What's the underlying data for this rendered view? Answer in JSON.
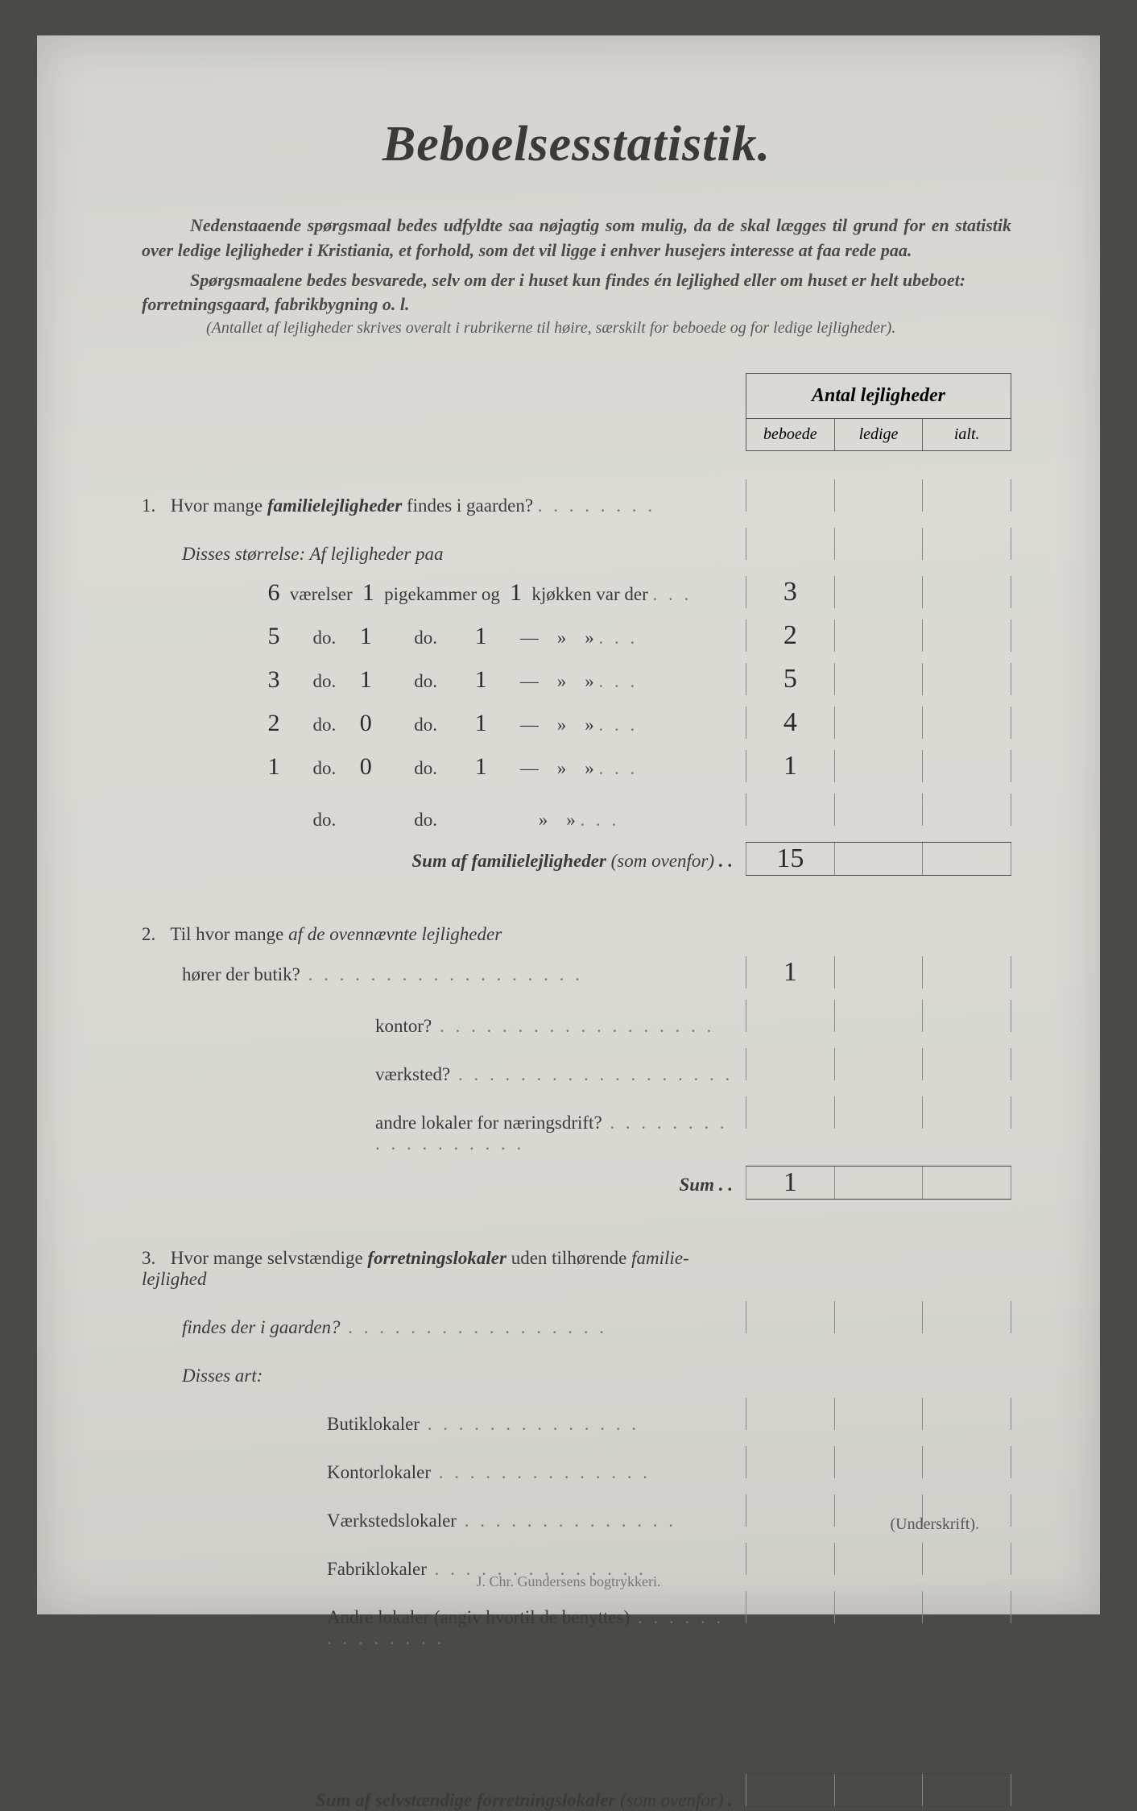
{
  "title": "Beboelsesstatistik.",
  "intro1": "Nedenstaaende spørgsmaal bedes udfyldte saa nøjagtig som mulig, da de skal lægges til grund for en statistik over ledige lejligheder i Kristiania, et forhold, som det vil ligge i enhver husejers interesse at faa rede paa.",
  "intro2": "Spørgsmaalene bedes besvarede, selv om der i huset kun findes én lejlighed eller om huset er helt ubeboet: forretningsgaard, fabrikbygning o. l.",
  "intro3": "(Antallet af lejligheder skrives overalt i rubrikerne til høire, særskilt for beboede og for ledige lejligheder).",
  "hdr_main": "Antal lejligheder",
  "hdr_c1": "beboede",
  "hdr_c2": "ledige",
  "hdr_c3": "ialt.",
  "q1": "Hvor mange ",
  "q1b": "familielejligheder",
  "q1c": " findes i gaarden?",
  "q1sub": "Disses størrelse:  Af lejligheder paa",
  "rows": [
    {
      "v": "6",
      "p": "1",
      "k": "1",
      "b": "3",
      "l": "",
      "i": ""
    },
    {
      "v": "5",
      "p": "1",
      "k": "1",
      "b": "2",
      "l": "",
      "i": ""
    },
    {
      "v": "3",
      "p": "1",
      "k": "1",
      "b": "5",
      "l": "",
      "i": ""
    },
    {
      "v": "2",
      "p": "0",
      "k": "1",
      "b": "4",
      "l": "",
      "i": ""
    },
    {
      "v": "1",
      "p": "0",
      "k": "1",
      "b": "1",
      "l": "",
      "i": ""
    },
    {
      "v": "",
      "p": "",
      "k": "",
      "b": "",
      "l": "",
      "i": ""
    }
  ],
  "labels": {
    "vaer": "værelser",
    "pige": "pigekammer og",
    "kjok": "kjøkken var der",
    "do": "do."
  },
  "sum1": "Sum af familielejligheder",
  "sum1_paren": " (som ovenfor)",
  "sum1_vals": {
    "b": "15",
    "l": "",
    "i": ""
  },
  "q2a": "Til hvor mange ",
  "q2b": "af de ovennævnte lejligheder",
  "q2rows": [
    {
      "t": "hører der butik?",
      "b": "1",
      "l": "",
      "i": ""
    },
    {
      "t": "kontor?",
      "b": "",
      "l": "",
      "i": ""
    },
    {
      "t": "værksted?",
      "b": "",
      "l": "",
      "i": ""
    },
    {
      "t": "andre lokaler for næringsdrift?",
      "b": "",
      "l": "",
      "i": ""
    }
  ],
  "sum2": "Sum",
  "sum2_vals": {
    "b": "1",
    "l": "",
    "i": ""
  },
  "q3a": "Hvor mange selvstændige ",
  "q3b": "forretningslokaler",
  "q3c": " uden tilhørende ",
  "q3d": "familie-lejlighed",
  "q3e": " findes der i gaarden?",
  "q3sub": "Disses art:",
  "q3rows": [
    {
      "t": "Butiklokaler"
    },
    {
      "t": "Kontorlokaler"
    },
    {
      "t": "Værkstedslokaler"
    },
    {
      "t": "Fabriklokaler"
    },
    {
      "t": "Andre lokaler (angiv hvortil de benyttes)"
    }
  ],
  "sum3": "Sum af selvstændige forretningslokaler",
  "sum3_paren": " (som ovenfor)",
  "sig": "(Underskrift).",
  "printer": "J. Chr. Gundersens bogtrykkeri."
}
